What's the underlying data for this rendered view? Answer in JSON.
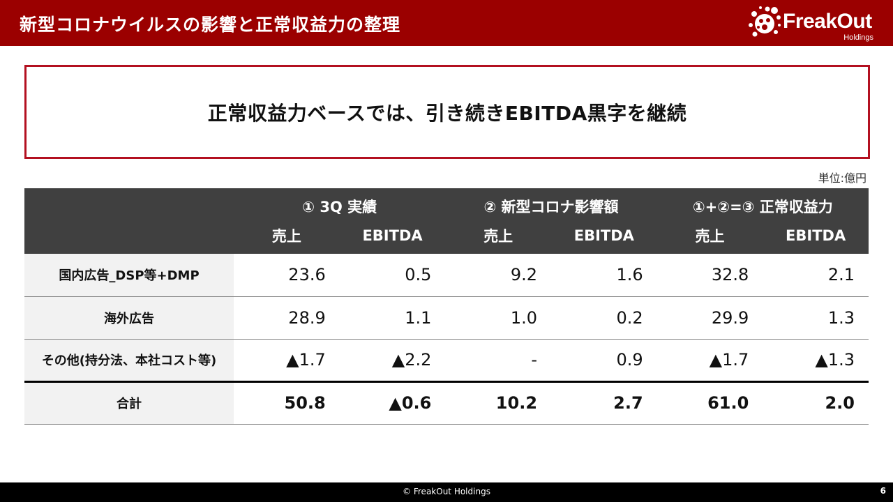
{
  "header": {
    "title": "新型コロナウイルスの影響と正常収益力の整理",
    "logo_name": "FreakOut",
    "logo_sub": "Holdings",
    "logo_icon": "splatter-bug-icon"
  },
  "message": "正常収益力ベースでは、引き続きEBITDA黒字を継続",
  "unit": "単位:億円",
  "table": {
    "groups": [
      "① 3Q 実績",
      "② 新型コロナ影響額",
      "①+②=③ 正常収益力"
    ],
    "subheaders": [
      "売上",
      "EBITDA",
      "売上",
      "EBITDA",
      "売上",
      "EBITDA"
    ],
    "rows": [
      {
        "label": "国内広告_DSP等+DMP",
        "values": [
          "23.6",
          "0.5",
          "9.2",
          "1.6",
          "32.8",
          "2.1"
        ]
      },
      {
        "label": "海外広告",
        "values": [
          "28.9",
          "1.1",
          "1.0",
          "0.2",
          "29.9",
          "1.3"
        ]
      },
      {
        "label": "その他(持分法、本社コスト等)",
        "values": [
          "▲1.7",
          "▲2.2",
          "-",
          "0.9",
          "▲1.7",
          "▲1.3"
        ]
      }
    ],
    "total": {
      "label": "合計",
      "values": [
        "50.8",
        "▲0.6",
        "10.2",
        "2.7",
        "61.0",
        "2.0"
      ]
    }
  },
  "footer": {
    "copyright": "© FreakOut Holdings",
    "page_number": "6"
  },
  "colors": {
    "header_bg": "#9b0000",
    "accent_border": "#b31020",
    "table_header_bg": "#404040",
    "label_cell_bg": "#f2f2f2",
    "footer_bg": "#000000"
  }
}
